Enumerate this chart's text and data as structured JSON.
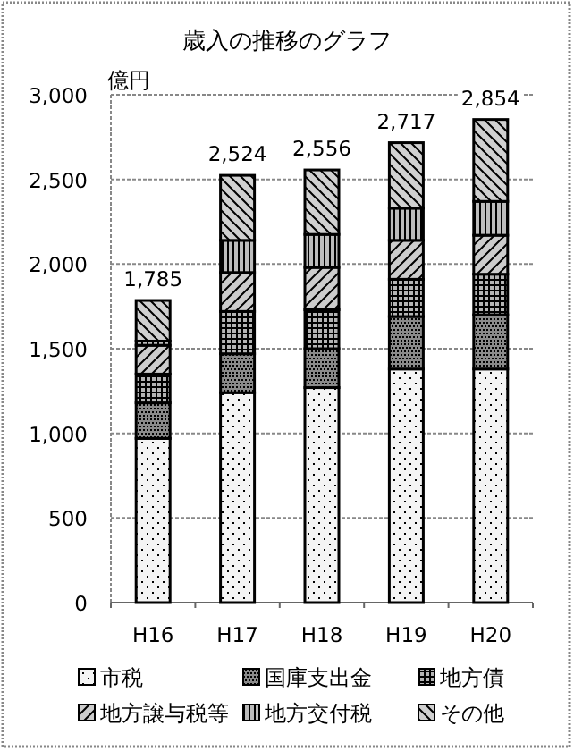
{
  "chart_data": {
    "type": "bar",
    "stacked": true,
    "title": "歳入の推移のグラフ",
    "ylabel": "億円",
    "categories": [
      "H16",
      "H17",
      "H18",
      "H19",
      "H20"
    ],
    "series": [
      {
        "name": "市税",
        "color": "#f4f4f4",
        "values": [
          970,
          1240,
          1270,
          1380,
          1380
        ]
      },
      {
        "name": "国庫支出金",
        "color": "#8a8a8a",
        "values": [
          210,
          230,
          230,
          310,
          320
        ]
      },
      {
        "name": "地方債",
        "color": "#b4b4b4",
        "values": [
          170,
          250,
          230,
          220,
          240
        ]
      },
      {
        "name": "地方譲与税等",
        "color": "#cccccc",
        "values": [
          170,
          230,
          250,
          230,
          230
        ]
      },
      {
        "name": "地方交付税",
        "color": "#bcbcbc",
        "values": [
          25,
          190,
          195,
          190,
          200
        ]
      },
      {
        "name": "その他",
        "color": "#d0d0d0",
        "values": [
          240,
          384,
          381,
          387,
          484
        ]
      }
    ],
    "totals": [
      "1,785",
      "2,524",
      "2,556",
      "2,717",
      "2,854"
    ],
    "ylim": [
      0,
      3000
    ],
    "yticks": [
      0,
      500,
      {
        "value": 1000,
        "label": "1,000"
      },
      {
        "value": 1500,
        "label": "1,500"
      },
      {
        "value": 2000,
        "label": "2,000"
      },
      {
        "value": 2500,
        "label": "2,500"
      },
      {
        "value": 3000,
        "label": "3,000"
      }
    ],
    "grid": "y",
    "legend": "bottom"
  }
}
